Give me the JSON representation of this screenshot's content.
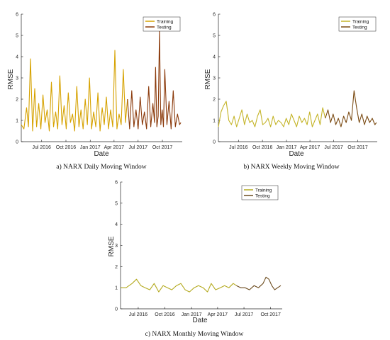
{
  "chart_data": [
    {
      "type": "line",
      "caption": "a) NARX Daily Moving Window",
      "xlabel": "Date",
      "ylabel": "RMSE",
      "ylim": [
        0,
        6
      ],
      "yticks": [
        0,
        1,
        2,
        3,
        4,
        5,
        6
      ],
      "xlim": [
        "2016-04-15",
        "2017-12-15"
      ],
      "xticks": [
        "Jul 2016",
        "Oct 2016",
        "Jan 2017",
        "Apr 2017",
        "Jul 2017",
        "Oct 2017"
      ],
      "xtick_dates": [
        "2016-07-01",
        "2016-10-01",
        "2017-01-01",
        "2017-04-01",
        "2017-07-01",
        "2017-10-01"
      ],
      "legend": {
        "position": "top-right",
        "entries": [
          "Training",
          "Testing"
        ]
      },
      "series": [
        {
          "name": "Training",
          "color": "#d6a200",
          "x": [
            "2016-04-15",
            "2016-04-25",
            "2016-05-05",
            "2016-05-12",
            "2016-05-20",
            "2016-05-28",
            "2016-06-05",
            "2016-06-12",
            "2016-06-20",
            "2016-06-28",
            "2016-07-06",
            "2016-07-14",
            "2016-07-22",
            "2016-07-30",
            "2016-08-07",
            "2016-08-15",
            "2016-08-23",
            "2016-08-31",
            "2016-09-08",
            "2016-09-16",
            "2016-09-24",
            "2016-10-02",
            "2016-10-10",
            "2016-10-18",
            "2016-10-26",
            "2016-11-03",
            "2016-11-11",
            "2016-11-19",
            "2016-11-27",
            "2016-12-05",
            "2016-12-13",
            "2016-12-21",
            "2016-12-29",
            "2017-01-06",
            "2017-01-14",
            "2017-01-22",
            "2017-01-30",
            "2017-02-07",
            "2017-02-15",
            "2017-02-23",
            "2017-03-03",
            "2017-03-11",
            "2017-03-19",
            "2017-03-27",
            "2017-04-04",
            "2017-04-12",
            "2017-04-20",
            "2017-04-28",
            "2017-05-06",
            "2017-05-14",
            "2017-05-22"
          ],
          "y": [
            0.8,
            0.6,
            1.6,
            0.7,
            3.9,
            0.5,
            2.5,
            0.7,
            1.8,
            0.6,
            2.2,
            0.9,
            1.5,
            0.5,
            2.8,
            0.7,
            1.4,
            0.6,
            3.1,
            0.8,
            1.7,
            0.6,
            2.3,
            0.9,
            1.3,
            0.5,
            2.6,
            0.7,
            1.5,
            0.6,
            2.0,
            0.8,
            3.0,
            0.6,
            1.4,
            0.7,
            2.3,
            0.5,
            1.6,
            0.8,
            2.1,
            0.6,
            1.5,
            0.7,
            4.3,
            0.6,
            1.3,
            0.8,
            3.4,
            0.9,
            2.0
          ]
        },
        {
          "name": "Testing",
          "color": "#8b3a0b",
          "x": [
            "2017-05-22",
            "2017-05-30",
            "2017-06-07",
            "2017-06-15",
            "2017-06-23",
            "2017-07-01",
            "2017-07-09",
            "2017-07-17",
            "2017-07-25",
            "2017-08-02",
            "2017-08-10",
            "2017-08-18",
            "2017-08-26",
            "2017-09-01",
            "2017-09-05",
            "2017-09-10",
            "2017-09-15",
            "2017-09-20",
            "2017-09-25",
            "2017-09-30",
            "2017-10-05",
            "2017-10-10",
            "2017-10-18",
            "2017-10-26",
            "2017-11-03",
            "2017-11-11",
            "2017-11-19",
            "2017-11-27",
            "2017-12-05",
            "2017-12-10"
          ],
          "y": [
            2.0,
            0.6,
            2.4,
            0.7,
            1.5,
            0.6,
            2.1,
            0.8,
            1.4,
            0.6,
            2.6,
            0.7,
            1.8,
            0.9,
            3.5,
            0.7,
            1.2,
            5.2,
            0.8,
            1.5,
            0.7,
            3.4,
            0.8,
            1.9,
            0.6,
            2.4,
            0.7,
            1.3,
            0.8,
            0.9
          ]
        }
      ]
    },
    {
      "type": "line",
      "caption": "b) NARX Weekly Moving Window",
      "xlabel": "Date",
      "ylabel": "RMSE",
      "ylim": [
        0,
        6
      ],
      "yticks": [
        0,
        1,
        2,
        3,
        4,
        5,
        6
      ],
      "xlim": [
        "2016-04-15",
        "2017-12-15"
      ],
      "xticks": [
        "Jul 2016",
        "Oct 2016",
        "Jan 2017",
        "Apr 2017",
        "Jul 2017",
        "Oct 2017"
      ],
      "xtick_dates": [
        "2016-07-01",
        "2016-10-01",
        "2017-01-01",
        "2017-04-01",
        "2017-07-01",
        "2017-10-01"
      ],
      "legend": {
        "position": "top-right",
        "entries": [
          "Training",
          "Testing"
        ]
      },
      "series": [
        {
          "name": "Training",
          "color": "#c4b428",
          "x": [
            "2016-04-15",
            "2016-04-25",
            "2016-05-05",
            "2016-05-15",
            "2016-05-25",
            "2016-06-04",
            "2016-06-14",
            "2016-06-24",
            "2016-07-04",
            "2016-07-14",
            "2016-07-24",
            "2016-08-03",
            "2016-08-13",
            "2016-08-23",
            "2016-09-02",
            "2016-09-12",
            "2016-09-22",
            "2016-10-02",
            "2016-10-12",
            "2016-10-22",
            "2016-11-01",
            "2016-11-11",
            "2016-11-21",
            "2016-12-01",
            "2016-12-11",
            "2016-12-21",
            "2016-12-31",
            "2017-01-10",
            "2017-01-20",
            "2017-01-30",
            "2017-02-09",
            "2017-02-19",
            "2017-03-01",
            "2017-03-11",
            "2017-03-21",
            "2017-03-31",
            "2017-04-10",
            "2017-04-20",
            "2017-04-30",
            "2017-05-10",
            "2017-05-20",
            "2017-05-30"
          ],
          "y": [
            0.7,
            1.4,
            1.7,
            1.9,
            1.0,
            0.8,
            1.2,
            0.7,
            1.1,
            1.5,
            0.8,
            1.3,
            0.9,
            1.0,
            0.7,
            1.2,
            1.5,
            0.8,
            0.9,
            1.1,
            0.7,
            1.2,
            0.8,
            1.0,
            0.9,
            0.7,
            1.1,
            0.8,
            1.3,
            1.0,
            0.7,
            1.2,
            0.9,
            1.1,
            0.8,
            1.4,
            0.7,
            1.0,
            1.3,
            0.8,
            1.6,
            1.1
          ]
        },
        {
          "name": "Testing",
          "color": "#7a4a12",
          "x": [
            "2017-05-30",
            "2017-06-09",
            "2017-06-19",
            "2017-06-29",
            "2017-07-09",
            "2017-07-19",
            "2017-07-29",
            "2017-08-08",
            "2017-08-18",
            "2017-08-28",
            "2017-09-07",
            "2017-09-17",
            "2017-09-27",
            "2017-10-07",
            "2017-10-17",
            "2017-10-27",
            "2017-11-06",
            "2017-11-16",
            "2017-11-26",
            "2017-12-06",
            "2017-12-12"
          ],
          "y": [
            1.1,
            1.5,
            0.9,
            1.3,
            0.8,
            1.1,
            0.7,
            1.2,
            0.9,
            1.4,
            1.0,
            2.4,
            1.6,
            0.9,
            1.3,
            0.8,
            1.2,
            0.9,
            1.1,
            0.8,
            0.9
          ]
        }
      ]
    },
    {
      "type": "line",
      "caption": "c) NARX Monthly Moving Window",
      "xlabel": "Date",
      "ylabel": "RMSE",
      "ylim": [
        0,
        6
      ],
      "yticks": [
        0,
        1,
        2,
        3,
        4,
        5,
        6
      ],
      "xlim": [
        "2016-05-01",
        "2017-11-10"
      ],
      "xticks": [
        "Jul 2016",
        "Oct 2016",
        "Jan 2017",
        "Apr 2017",
        "Jul 2017",
        "Oct 2017"
      ],
      "xtick_dates": [
        "2016-07-01",
        "2016-10-01",
        "2017-01-01",
        "2017-04-01",
        "2017-07-01",
        "2017-10-01"
      ],
      "legend": {
        "position": "top-right",
        "entries": [
          "Training",
          "Testing"
        ]
      },
      "series": [
        {
          "name": "Training",
          "color": "#b4aa20",
          "x": [
            "2016-05-01",
            "2016-05-20",
            "2016-06-10",
            "2016-06-25",
            "2016-07-10",
            "2016-07-25",
            "2016-08-10",
            "2016-08-25",
            "2016-09-10",
            "2016-09-25",
            "2016-10-10",
            "2016-10-25",
            "2016-11-10",
            "2016-11-25",
            "2016-12-10",
            "2016-12-25",
            "2017-01-10",
            "2017-01-25",
            "2017-02-10",
            "2017-02-25",
            "2017-03-10",
            "2017-03-25",
            "2017-04-10",
            "2017-04-25",
            "2017-05-10",
            "2017-05-25",
            "2017-06-05"
          ],
          "y": [
            1.0,
            1.0,
            1.2,
            1.4,
            1.1,
            1.0,
            0.9,
            1.2,
            0.8,
            1.1,
            1.0,
            0.9,
            1.1,
            1.2,
            0.9,
            0.8,
            1.0,
            1.1,
            1.0,
            0.8,
            1.2,
            0.9,
            1.0,
            1.1,
            1.0,
            1.2,
            1.1
          ]
        },
        {
          "name": "Testing",
          "color": "#6b4a1c",
          "x": [
            "2017-06-05",
            "2017-06-20",
            "2017-07-05",
            "2017-07-20",
            "2017-08-05",
            "2017-08-20",
            "2017-09-05",
            "2017-09-15",
            "2017-09-25",
            "2017-10-05",
            "2017-10-15",
            "2017-10-25",
            "2017-11-05"
          ],
          "y": [
            1.1,
            1.0,
            1.0,
            0.9,
            1.1,
            1.0,
            1.2,
            1.5,
            1.4,
            1.1,
            0.9,
            1.0,
            1.1
          ]
        }
      ]
    }
  ]
}
